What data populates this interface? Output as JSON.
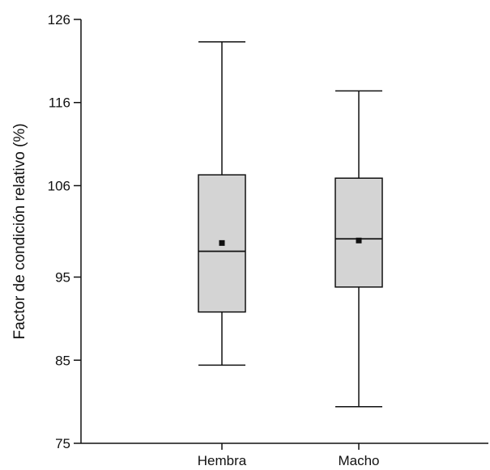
{
  "chart_data": {
    "type": "box",
    "ylabel": "Factor de condición relativo (%)",
    "xlabel": "",
    "ylim": [
      75,
      126
    ],
    "yticks": [
      75,
      85,
      95,
      106,
      116,
      126
    ],
    "categories": [
      "Hembra",
      "Macho"
    ],
    "boxes": [
      {
        "category": "Hembra",
        "whisker_low": 84.4,
        "q1": 90.8,
        "median": 98.1,
        "q3": 107.3,
        "whisker_high": 123.3,
        "mean": 99.1
      },
      {
        "category": "Macho",
        "whisker_low": 79.4,
        "q1": 93.8,
        "median": 99.6,
        "q3": 106.9,
        "whisker_high": 117.4,
        "mean": 99.4
      }
    ],
    "box_fill": "#d4d4d4",
    "line_color": "#111111"
  }
}
